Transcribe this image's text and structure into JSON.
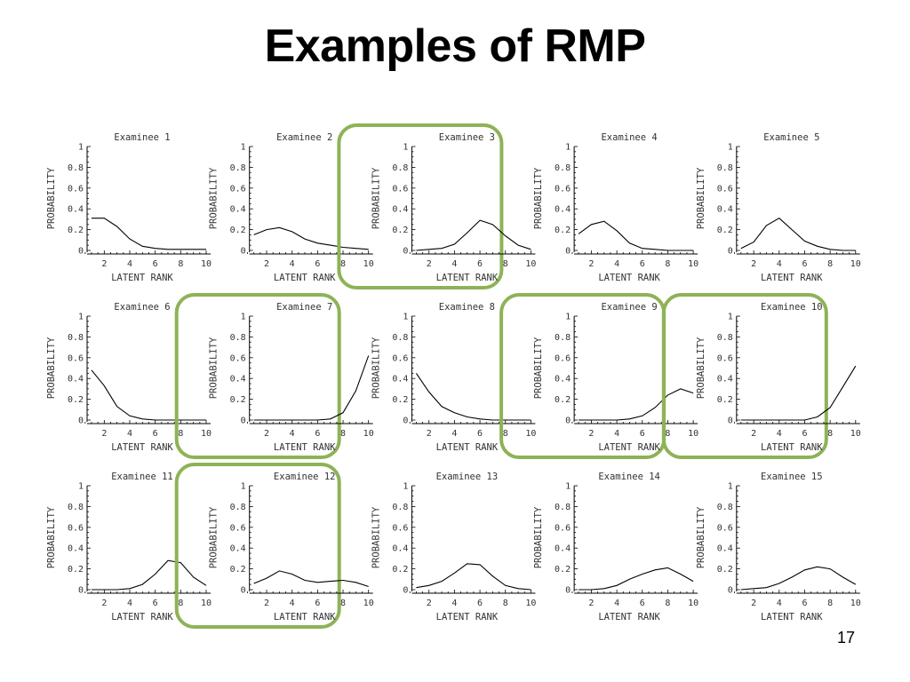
{
  "slide": {
    "title": "Examples of RMP",
    "page_number": "17"
  },
  "colors": {
    "highlight": "#8db356",
    "line": "#000000",
    "text": "#333333"
  },
  "chart_data": [
    {
      "type": "line",
      "title": "Examinee 1",
      "xlabel": "LATENT RANK",
      "ylabel": "PROBABILITY",
      "x": [
        1,
        2,
        3,
        4,
        5,
        6,
        7,
        8,
        9,
        10
      ],
      "values": [
        0.31,
        0.31,
        0.23,
        0.11,
        0.04,
        0.02,
        0.01,
        0.01,
        0.01,
        0.01
      ],
      "xlim": [
        1,
        10
      ],
      "ylim": [
        0,
        1
      ],
      "xticks": [
        "2",
        "4",
        "6",
        "8",
        "10"
      ],
      "yticks": [
        "0",
        "0.2",
        "0.4",
        "0.6",
        "0.8",
        "1"
      ],
      "highlighted": false
    },
    {
      "type": "line",
      "title": "Examinee 2",
      "xlabel": "LATENT RANK",
      "ylabel": "PROBABILITY",
      "x": [
        1,
        2,
        3,
        4,
        5,
        6,
        7,
        8,
        9,
        10
      ],
      "values": [
        0.15,
        0.2,
        0.22,
        0.18,
        0.11,
        0.07,
        0.05,
        0.03,
        0.02,
        0.01
      ],
      "xlim": [
        1,
        10
      ],
      "ylim": [
        0,
        1
      ],
      "xticks": [
        "2",
        "4",
        "6",
        "8",
        "10"
      ],
      "yticks": [
        "0",
        "0.2",
        "0.4",
        "0.6",
        "0.8",
        "1"
      ],
      "highlighted": false
    },
    {
      "type": "line",
      "title": "Examinee 3",
      "xlabel": "LATENT RANK",
      "ylabel": "PROBABILITY",
      "x": [
        1,
        2,
        3,
        4,
        5,
        6,
        7,
        8,
        9,
        10
      ],
      "values": [
        0.0,
        0.01,
        0.02,
        0.06,
        0.17,
        0.29,
        0.25,
        0.14,
        0.05,
        0.01
      ],
      "xlim": [
        1,
        10
      ],
      "ylim": [
        0,
        1
      ],
      "xticks": [
        "2",
        "4",
        "6",
        "8",
        "10"
      ],
      "yticks": [
        "0",
        "0.2",
        "0.4",
        "0.6",
        "0.8",
        "1"
      ],
      "highlighted": true
    },
    {
      "type": "line",
      "title": "Examinee 4",
      "xlabel": "LATENT RANK",
      "ylabel": "PROBABILITY",
      "x": [
        1,
        2,
        3,
        4,
        5,
        6,
        7,
        8,
        9,
        10
      ],
      "values": [
        0.16,
        0.25,
        0.28,
        0.19,
        0.07,
        0.02,
        0.01,
        0.0,
        0.0,
        0.0
      ],
      "xlim": [
        1,
        10
      ],
      "ylim": [
        0,
        1
      ],
      "xticks": [
        "2",
        "4",
        "6",
        "8",
        "10"
      ],
      "yticks": [
        "0",
        "0.2",
        "0.4",
        "0.6",
        "0.8",
        "1"
      ],
      "highlighted": false
    },
    {
      "type": "line",
      "title": "Examinee 5",
      "xlabel": "LATENT RANK",
      "ylabel": "PROBABILITY",
      "x": [
        1,
        2,
        3,
        4,
        5,
        6,
        7,
        8,
        9,
        10
      ],
      "values": [
        0.02,
        0.08,
        0.24,
        0.31,
        0.2,
        0.09,
        0.04,
        0.01,
        0.0,
        0.0
      ],
      "xlim": [
        1,
        10
      ],
      "ylim": [
        0,
        1
      ],
      "xticks": [
        "2",
        "4",
        "6",
        "8",
        "10"
      ],
      "yticks": [
        "0",
        "0.2",
        "0.4",
        "0.6",
        "0.8",
        "1"
      ],
      "highlighted": false
    },
    {
      "type": "line",
      "title": "Examinee 6",
      "xlabel": "LATENT RANK",
      "ylabel": "PROBABILITY",
      "x": [
        1,
        2,
        3,
        4,
        5,
        6,
        7,
        8,
        9,
        10
      ],
      "values": [
        0.48,
        0.33,
        0.13,
        0.04,
        0.01,
        0.0,
        0.0,
        0.0,
        0.0,
        0.0
      ],
      "xlim": [
        1,
        10
      ],
      "ylim": [
        0,
        1
      ],
      "xticks": [
        "2",
        "4",
        "6",
        "8",
        "10"
      ],
      "yticks": [
        "0",
        "0.2",
        "0.4",
        "0.6",
        "0.8",
        "1"
      ],
      "highlighted": false
    },
    {
      "type": "line",
      "title": "Examinee 7",
      "xlabel": "LATENT RANK",
      "ylabel": "PROBABILITY",
      "x": [
        1,
        2,
        3,
        4,
        5,
        6,
        7,
        8,
        9,
        10
      ],
      "values": [
        0.0,
        0.0,
        0.0,
        0.0,
        0.0,
        0.0,
        0.01,
        0.07,
        0.28,
        0.62
      ],
      "xlim": [
        1,
        10
      ],
      "ylim": [
        0,
        1
      ],
      "xticks": [
        "2",
        "4",
        "6",
        "8",
        "10"
      ],
      "yticks": [
        "0",
        "0.2",
        "0.4",
        "0.6",
        "0.8",
        "1"
      ],
      "highlighted": true
    },
    {
      "type": "line",
      "title": "Examinee 8",
      "xlabel": "LATENT RANK",
      "ylabel": "PROBABILITY",
      "x": [
        1,
        2,
        3,
        4,
        5,
        6,
        7,
        8,
        9,
        10
      ],
      "values": [
        0.45,
        0.27,
        0.13,
        0.07,
        0.03,
        0.01,
        0.0,
        0.0,
        0.0,
        0.0
      ],
      "xlim": [
        1,
        10
      ],
      "ylim": [
        0,
        1
      ],
      "xticks": [
        "2",
        "4",
        "6",
        "8",
        "10"
      ],
      "yticks": [
        "0",
        "0.2",
        "0.4",
        "0.6",
        "0.8",
        "1"
      ],
      "highlighted": false
    },
    {
      "type": "line",
      "title": "Examinee 9",
      "xlabel": "LATENT RANK",
      "ylabel": "PROBABILITY",
      "x": [
        1,
        2,
        3,
        4,
        5,
        6,
        7,
        8,
        9,
        10
      ],
      "values": [
        0.0,
        0.0,
        0.0,
        0.0,
        0.01,
        0.04,
        0.12,
        0.24,
        0.3,
        0.26
      ],
      "xlim": [
        1,
        10
      ],
      "ylim": [
        0,
        1
      ],
      "xticks": [
        "2",
        "4",
        "6",
        "8",
        "10"
      ],
      "yticks": [
        "0",
        "0.2",
        "0.4",
        "0.6",
        "0.8",
        "1"
      ],
      "highlighted": true
    },
    {
      "type": "line",
      "title": "Examinee 10",
      "xlabel": "LATENT RANK",
      "ylabel": "PROBABILITY",
      "x": [
        1,
        2,
        3,
        4,
        5,
        6,
        7,
        8,
        9,
        10
      ],
      "values": [
        0.0,
        0.0,
        0.0,
        0.0,
        0.0,
        0.0,
        0.03,
        0.12,
        0.32,
        0.52
      ],
      "xlim": [
        1,
        10
      ],
      "ylim": [
        0,
        1
      ],
      "xticks": [
        "2",
        "4",
        "6",
        "8",
        "10"
      ],
      "yticks": [
        "0",
        "0.2",
        "0.4",
        "0.6",
        "0.8",
        "1"
      ],
      "highlighted": true
    },
    {
      "type": "line",
      "title": "Examinee 11",
      "xlabel": "LATENT RANK",
      "ylabel": "PROBABILITY",
      "x": [
        1,
        2,
        3,
        4,
        5,
        6,
        7,
        8,
        9,
        10
      ],
      "values": [
        0.0,
        0.0,
        0.0,
        0.01,
        0.05,
        0.15,
        0.28,
        0.26,
        0.12,
        0.04
      ],
      "xlim": [
        1,
        10
      ],
      "ylim": [
        0,
        1
      ],
      "xticks": [
        "2",
        "4",
        "6",
        "8",
        "10"
      ],
      "yticks": [
        "0",
        "0.2",
        "0.4",
        "0.6",
        "0.8",
        "1"
      ],
      "highlighted": false
    },
    {
      "type": "line",
      "title": "Examinee 12",
      "xlabel": "LATENT RANK",
      "ylabel": "PROBABILITY",
      "x": [
        1,
        2,
        3,
        4,
        5,
        6,
        7,
        8,
        9,
        10
      ],
      "values": [
        0.06,
        0.11,
        0.18,
        0.15,
        0.09,
        0.07,
        0.08,
        0.09,
        0.07,
        0.03
      ],
      "xlim": [
        1,
        10
      ],
      "ylim": [
        0,
        1
      ],
      "xticks": [
        "2",
        "4",
        "6",
        "8",
        "10"
      ],
      "yticks": [
        "0",
        "0.2",
        "0.4",
        "0.6",
        "0.8",
        "1"
      ],
      "highlighted": true
    },
    {
      "type": "line",
      "title": "Examinee 13",
      "xlabel": "LATENT RANK",
      "ylabel": "PROBABILITY",
      "x": [
        1,
        2,
        3,
        4,
        5,
        6,
        7,
        8,
        9,
        10
      ],
      "values": [
        0.02,
        0.04,
        0.08,
        0.16,
        0.25,
        0.24,
        0.13,
        0.04,
        0.01,
        0.0
      ],
      "xlim": [
        1,
        10
      ],
      "ylim": [
        0,
        1
      ],
      "xticks": [
        "2",
        "4",
        "6",
        "8",
        "10"
      ],
      "yticks": [
        "0",
        "0.2",
        "0.4",
        "0.6",
        "0.8",
        "1"
      ],
      "highlighted": false
    },
    {
      "type": "line",
      "title": "Examinee 14",
      "xlabel": "LATENT RANK",
      "ylabel": "PROBABILITY",
      "x": [
        1,
        2,
        3,
        4,
        5,
        6,
        7,
        8,
        9,
        10
      ],
      "values": [
        0.0,
        0.0,
        0.01,
        0.04,
        0.1,
        0.15,
        0.19,
        0.21,
        0.15,
        0.08
      ],
      "xlim": [
        1,
        10
      ],
      "ylim": [
        0,
        1
      ],
      "xticks": [
        "2",
        "4",
        "6",
        "8",
        "10"
      ],
      "yticks": [
        "0",
        "0.2",
        "0.4",
        "0.6",
        "0.8",
        "1"
      ],
      "highlighted": false
    },
    {
      "type": "line",
      "title": "Examinee 15",
      "xlabel": "LATENT RANK",
      "ylabel": "PROBABILITY",
      "x": [
        1,
        2,
        3,
        4,
        5,
        6,
        7,
        8,
        9,
        10
      ],
      "values": [
        0.0,
        0.01,
        0.02,
        0.06,
        0.12,
        0.19,
        0.22,
        0.2,
        0.12,
        0.05
      ],
      "xlim": [
        1,
        10
      ],
      "ylim": [
        0,
        1
      ],
      "xticks": [
        "2",
        "4",
        "6",
        "8",
        "10"
      ],
      "yticks": [
        "0",
        "0.2",
        "0.4",
        "0.6",
        "0.8",
        "1"
      ],
      "highlighted": false
    }
  ]
}
